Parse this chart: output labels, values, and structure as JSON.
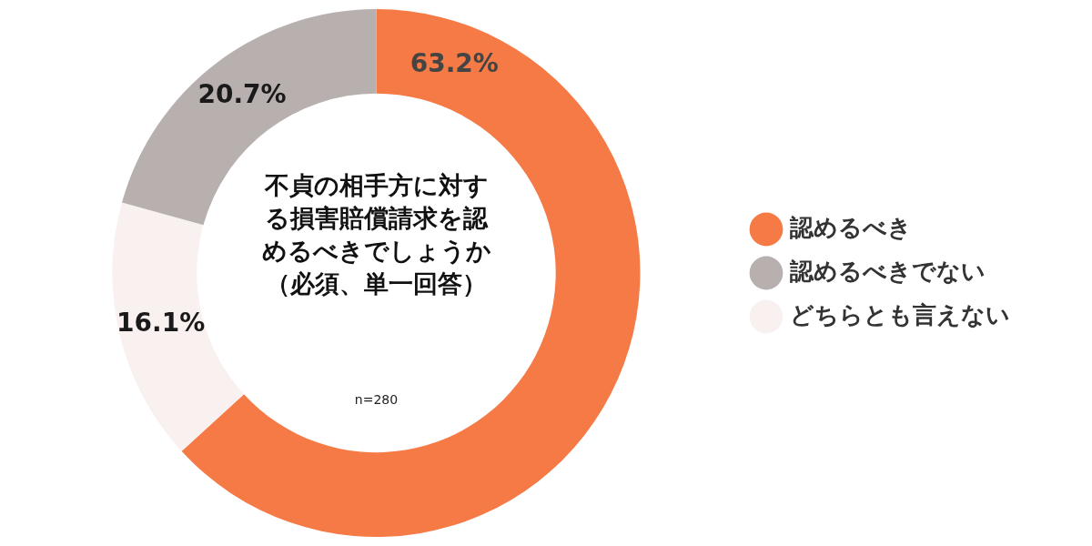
{
  "chart_data": {
    "type": "donut",
    "title": "不貞の相手方に対する損害賠償請求を認めるべきでしょうか",
    "subtitle": "（必須、単一回答）",
    "categories": [
      "認めるべき",
      "認めるべきでない",
      "どちらとも言えない"
    ],
    "values": [
      63.2,
      20.7,
      16.1
    ],
    "colors": [
      "#f57a45",
      "#b7b0af",
      "#f8f1ef"
    ],
    "value_labels": [
      "63.2%",
      "20.7%",
      "16.1%"
    ],
    "legend": "right",
    "annotations": [
      "n=280"
    ]
  }
}
